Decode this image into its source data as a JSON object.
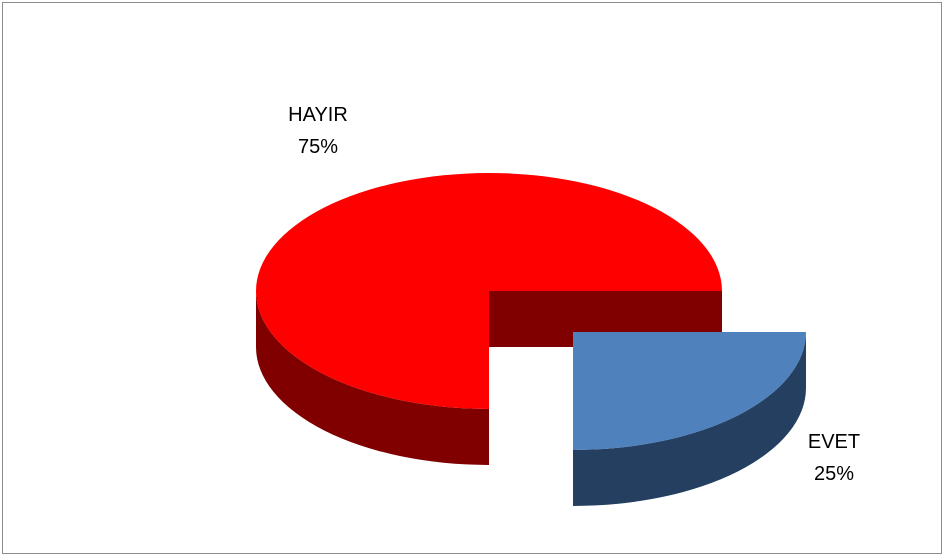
{
  "chart_data": {
    "type": "pie",
    "style": "3d-exploded",
    "slices": [
      {
        "label": "HAYIR",
        "value": 75,
        "value_label": "75%",
        "color": "#ff0000",
        "side_color": "#800000"
      },
      {
        "label": "EVET",
        "value": 25,
        "value_label": "25%",
        "color": "#4f81bd",
        "side_color": "#243f60"
      }
    ],
    "exploded_slice": "EVET",
    "legend": "none",
    "title": ""
  }
}
